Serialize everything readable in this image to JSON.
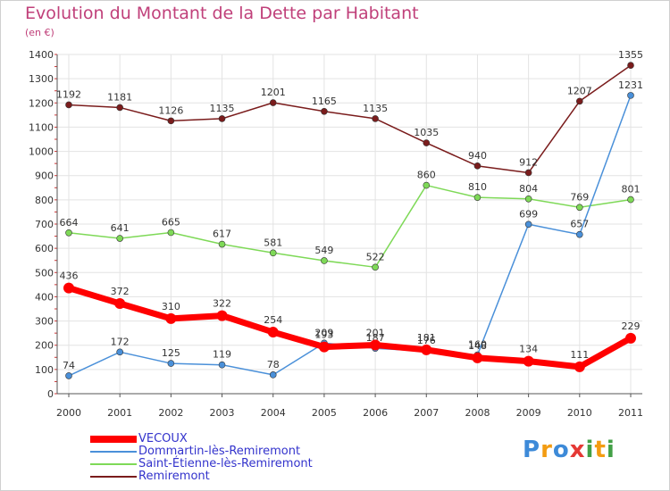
{
  "chart_data": {
    "type": "line",
    "title": "Evolution du Montant de la Dette par Habitant",
    "subtitle": "(en €)",
    "categories": [
      "2000",
      "2001",
      "2002",
      "2003",
      "2004",
      "2005",
      "2006",
      "2007",
      "2008",
      "2009",
      "2010",
      "2011"
    ],
    "ylim": [
      0,
      1400
    ],
    "yticks": [
      0,
      100,
      200,
      300,
      400,
      500,
      600,
      700,
      800,
      900,
      1000,
      1100,
      1200,
      1300,
      1400
    ],
    "grid": true,
    "legend_position": "bottom-left",
    "series": [
      {
        "name": "VECOUX",
        "color": "#ff0000",
        "values": [
          436,
          372,
          310,
          322,
          254,
          193,
          201,
          181,
          148,
          134,
          111,
          229
        ]
      },
      {
        "name": "Dommartin-lès-Remiremont",
        "color": "#4a90d9",
        "values": [
          74,
          172,
          125,
          119,
          78,
          209,
          187,
          176,
          160,
          699,
          657,
          1231
        ]
      },
      {
        "name": "Saint-Étienne-lès-Remiremont",
        "color": "#7ed957",
        "values": [
          664,
          641,
          665,
          617,
          581,
          549,
          522,
          860,
          810,
          804,
          769,
          801
        ]
      },
      {
        "name": "Remiremont",
        "color": "#7a1c1c",
        "values": [
          1192,
          1181,
          1126,
          1135,
          1201,
          1165,
          1135,
          1035,
          940,
          912,
          1207,
          1355
        ]
      }
    ]
  },
  "logo": {
    "letters": [
      "P",
      "r",
      "o",
      "x",
      "i",
      "t",
      "i"
    ],
    "colors": [
      "#3d8ad8",
      "#f39c12",
      "#3d8ad8",
      "#e53935",
      "#43a047",
      "#f39c12",
      "#43a047"
    ]
  }
}
